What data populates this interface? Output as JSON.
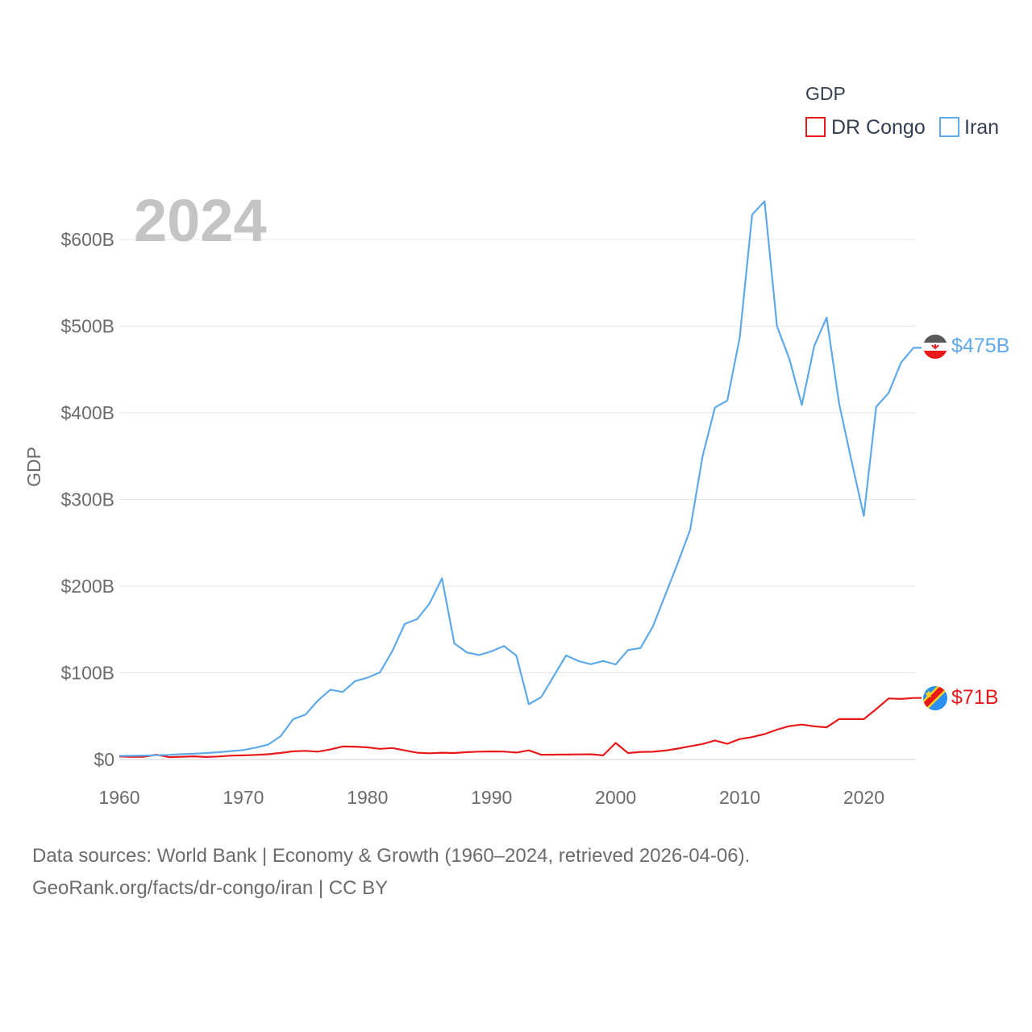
{
  "chart_data": {
    "type": "line",
    "title": "GDP",
    "big_year": "2024",
    "ylabel": "GDP",
    "xlabel": "",
    "xlim": [
      1960,
      2024
    ],
    "ylim": [
      0,
      650
    ],
    "x_ticks": [
      1960,
      1970,
      1980,
      1990,
      2000,
      2010,
      2020
    ],
    "y_ticks": [
      {
        "value": 0,
        "label": "$0"
      },
      {
        "value": 100,
        "label": "$100B"
      },
      {
        "value": 200,
        "label": "$200B"
      },
      {
        "value": 300,
        "label": "$300B"
      },
      {
        "value": 400,
        "label": "$400B"
      },
      {
        "value": 500,
        "label": "$500B"
      },
      {
        "value": 600,
        "label": "$600B"
      }
    ],
    "grid": true,
    "legend": {
      "title": "GDP",
      "position": "top-right"
    },
    "units": "billions of USD",
    "x": [
      1960,
      1961,
      1962,
      1963,
      1964,
      1965,
      1966,
      1967,
      1968,
      1969,
      1970,
      1971,
      1972,
      1973,
      1974,
      1975,
      1976,
      1977,
      1978,
      1979,
      1980,
      1981,
      1982,
      1983,
      1984,
      1985,
      1986,
      1987,
      1988,
      1989,
      1990,
      1991,
      1992,
      1993,
      1994,
      1995,
      1996,
      1997,
      1998,
      1999,
      2000,
      2001,
      2002,
      2003,
      2004,
      2005,
      2006,
      2007,
      2008,
      2009,
      2010,
      2011,
      2012,
      2013,
      2014,
      2015,
      2016,
      2017,
      2018,
      2019,
      2020,
      2021,
      2022,
      2023,
      2024
    ],
    "series": [
      {
        "name": "DR Congo",
        "color": "#e8191b",
        "end_label": "$71B",
        "flag": "dr-congo-flag-icon",
        "values": [
          3.4,
          3.0,
          3.2,
          5.5,
          2.7,
          3.2,
          3.6,
          2.9,
          3.4,
          4.5,
          4.7,
          5.3,
          6.0,
          7.5,
          9.4,
          10.0,
          9.0,
          11.5,
          15.0,
          14.8,
          14.0,
          12.3,
          13.2,
          10.5,
          7.8,
          7.2,
          7.8,
          7.4,
          8.5,
          9.0,
          9.3,
          9.1,
          8.0,
          10.5,
          5.5,
          5.6,
          5.7,
          5.9,
          6.0,
          4.7,
          19.1,
          7.4,
          8.7,
          8.9,
          10.3,
          12.6,
          15.3,
          17.9,
          22.0,
          18.1,
          23.5,
          25.9,
          29.3,
          34.4,
          38.5,
          40.3,
          38.2,
          37.1,
          46.6,
          46.6,
          46.6,
          58.1,
          70.4,
          69.9,
          71.0
        ]
      },
      {
        "name": "Iran",
        "color": "#5ea9ea",
        "end_label": "$475B",
        "flag": "iran-flag-icon",
        "values": [
          4.2,
          4.3,
          4.6,
          4.9,
          5.3,
          6.2,
          6.6,
          7.4,
          8.4,
          9.7,
          10.9,
          13.7,
          17.2,
          27.0,
          46.4,
          51.8,
          68.0,
          80.6,
          77.9,
          90.4,
          94.4,
          100.5,
          125.0,
          156.5,
          162.0,
          180.0,
          209.0,
          134.0,
          123.5,
          120.5,
          124.8,
          131.0,
          119.8,
          63.7,
          72.0,
          96.0,
          120.0,
          113.6,
          110.0,
          113.7,
          109.6,
          126.3,
          128.6,
          153.5,
          190.0,
          226.5,
          265.0,
          349.9,
          406.1,
          414.1,
          487.1,
          628.7,
          644.0,
          500.0,
          462.0,
          408.9,
          477.0,
          510.0,
          411.0,
          345.0,
          281.0,
          407.0,
          423.0,
          458.0,
          475.0
        ]
      }
    ]
  },
  "footer": {
    "line1": "Data sources: World Bank | Economy & Growth (1960–2024, retrieved 2026-04-06).",
    "line2": "GeoRank.org/facts/dr-congo/iran | CC BY"
  }
}
